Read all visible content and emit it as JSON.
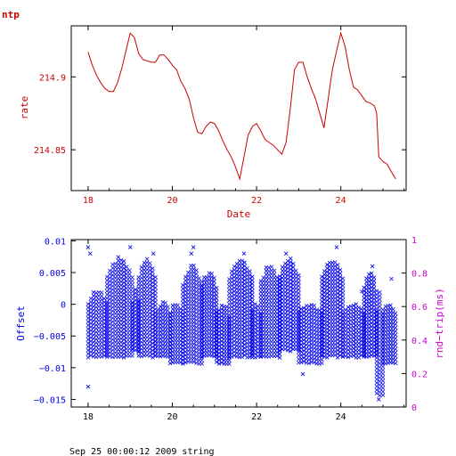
{
  "header": {
    "title": "ntp",
    "footer": "Sep 25 00:00:12 2009 string"
  },
  "colors": {
    "rate": "#cc0000",
    "offset": "#0000ee",
    "rtt": "#cc00cc",
    "frame": "#000000"
  },
  "chart_data": [
    {
      "type": "line",
      "title": "ntp",
      "xlabel": "Date",
      "ylabel": "rate",
      "xlim": [
        17.6,
        25.55
      ],
      "ylim": [
        214.822,
        214.935
      ],
      "x_ticks": [
        18,
        20,
        22,
        24
      ],
      "y_ticks": [
        214.85,
        214.9
      ],
      "y_tick_labels": [
        "214.85",
        "214.9"
      ],
      "series": [
        {
          "x": [
            18.0,
            18.1,
            18.2,
            18.3,
            18.4,
            18.5,
            18.6,
            18.7,
            18.8,
            18.9,
            19.0,
            19.1,
            19.2,
            19.3,
            19.4,
            19.5,
            19.6,
            19.7,
            19.8,
            19.9,
            20.0,
            20.1,
            20.2,
            20.3,
            20.4,
            20.5,
            20.6,
            20.7,
            20.8,
            20.9,
            21.0,
            21.1,
            21.2,
            21.3,
            21.4,
            21.5,
            21.6,
            21.7,
            21.8,
            21.9,
            22.0,
            22.1,
            22.2,
            22.3,
            22.4,
            22.5,
            22.6,
            22.7,
            22.8,
            22.9,
            23.0,
            23.1,
            23.2,
            23.3,
            23.4,
            23.5,
            23.6,
            23.7,
            23.8,
            23.9,
            24.0,
            24.1,
            24.2,
            24.3,
            24.4,
            24.5,
            24.6,
            24.7,
            24.8,
            24.85,
            24.9,
            25.0,
            25.1,
            25.2,
            25.3
          ],
          "y": [
            214.917,
            214.908,
            214.901,
            214.896,
            214.892,
            214.89,
            214.89,
            214.896,
            214.906,
            214.918,
            214.93,
            214.927,
            214.916,
            214.912,
            214.911,
            214.91,
            214.91,
            214.915,
            214.915,
            214.912,
            214.908,
            214.905,
            214.897,
            214.892,
            214.885,
            214.872,
            214.862,
            214.861,
            214.866,
            214.869,
            214.868,
            214.863,
            214.856,
            214.85,
            214.845,
            214.838,
            214.83,
            214.845,
            214.86,
            214.866,
            214.868,
            214.863,
            214.857,
            214.855,
            214.853,
            214.85,
            214.847,
            214.855,
            214.878,
            214.905,
            214.91,
            214.91,
            214.9,
            214.892,
            214.885,
            214.875,
            214.865,
            214.885,
            214.905,
            214.918,
            214.93,
            214.921,
            214.905,
            214.893,
            214.891,
            214.887,
            214.883,
            214.882,
            214.88,
            214.875,
            214.845,
            214.842,
            214.84,
            214.835,
            214.83
          ]
        }
      ]
    },
    {
      "type": "scatter",
      "xlabel": "",
      "ylabel": "Offset",
      "y2label": "rnd−trip(ms)",
      "xlim": [
        17.6,
        25.55
      ],
      "ylim": [
        -0.0162,
        0.0102
      ],
      "y2lim": [
        0,
        1
      ],
      "x_ticks": [
        18,
        20,
        22,
        24
      ],
      "x_tick_labels": [
        "18",
        "20",
        "22",
        "24"
      ],
      "y_ticks": [
        -0.015,
        -0.01,
        -0.005,
        0,
        0.005,
        0.01
      ],
      "y_tick_labels": [
        "−0.015",
        "−0.01",
        "−0.005",
        "0",
        "0.005",
        "0.01"
      ],
      "y2_ticks": [
        0,
        0.2,
        0.4,
        0.6,
        0.8,
        1
      ],
      "y2_tick_labels": [
        "0",
        "0.2",
        "0.4",
        "0.6",
        "0.8",
        "1"
      ],
      "bands": [
        {
          "x": [
            18.0,
            18.45
          ],
          "y": [
            -0.008,
            0.002
          ]
        },
        {
          "x": [
            18.45,
            19.05
          ],
          "y": [
            -0.008,
            0.007
          ]
        },
        {
          "x": [
            19.05,
            19.2
          ],
          "y": [
            -0.007,
            0.002
          ]
        },
        {
          "x": [
            19.2,
            19.6
          ],
          "y": [
            -0.008,
            0.007
          ]
        },
        {
          "x": [
            19.6,
            19.95
          ],
          "y": [
            -0.008,
            0.0
          ]
        },
        {
          "x": [
            19.95,
            20.25
          ],
          "y": [
            -0.009,
            0.0
          ]
        },
        {
          "x": [
            20.25,
            20.7
          ],
          "y": [
            -0.009,
            0.006
          ]
        },
        {
          "x": [
            20.7,
            21.05
          ],
          "y": [
            -0.008,
            0.005
          ]
        },
        {
          "x": [
            21.05,
            21.35
          ],
          "y": [
            -0.009,
            0.0
          ]
        },
        {
          "x": [
            21.35,
            21.9
          ],
          "y": [
            -0.008,
            0.007
          ]
        },
        {
          "x": [
            21.9,
            22.1
          ],
          "y": [
            -0.008,
            0.0
          ]
        },
        {
          "x": [
            22.1,
            22.55
          ],
          "y": [
            -0.008,
            0.006
          ]
        },
        {
          "x": [
            22.55,
            23.0
          ],
          "y": [
            -0.007,
            0.007
          ]
        },
        {
          "x": [
            23.0,
            23.55
          ],
          "y": [
            -0.009,
            0.0
          ]
        },
        {
          "x": [
            23.55,
            24.05
          ],
          "y": [
            -0.008,
            0.007
          ]
        },
        {
          "x": [
            24.05,
            24.55
          ],
          "y": [
            -0.008,
            0.0
          ]
        },
        {
          "x": [
            24.55,
            24.85
          ],
          "y": [
            -0.008,
            0.005
          ]
        },
        {
          "x": [
            24.85,
            25.0
          ],
          "y": [
            -0.014,
            0.002
          ]
        },
        {
          "x": [
            25.0,
            25.3
          ],
          "y": [
            -0.009,
            0.0
          ]
        }
      ],
      "outliers": [
        {
          "x": 18.0,
          "y": 0.009
        },
        {
          "x": 18.0,
          "y": -0.013
        },
        {
          "x": 18.05,
          "y": 0.008
        },
        {
          "x": 19.0,
          "y": 0.009
        },
        {
          "x": 19.55,
          "y": 0.008
        },
        {
          "x": 20.5,
          "y": 0.009
        },
        {
          "x": 20.45,
          "y": 0.008
        },
        {
          "x": 21.7,
          "y": 0.008
        },
        {
          "x": 22.7,
          "y": 0.008
        },
        {
          "x": 23.1,
          "y": -0.011
        },
        {
          "x": 23.9,
          "y": 0.009
        },
        {
          "x": 24.75,
          "y": 0.006
        },
        {
          "x": 24.9,
          "y": -0.015
        },
        {
          "x": 25.2,
          "y": 0.004
        },
        {
          "x": 24.5,
          "y": 0.002
        }
      ]
    }
  ]
}
